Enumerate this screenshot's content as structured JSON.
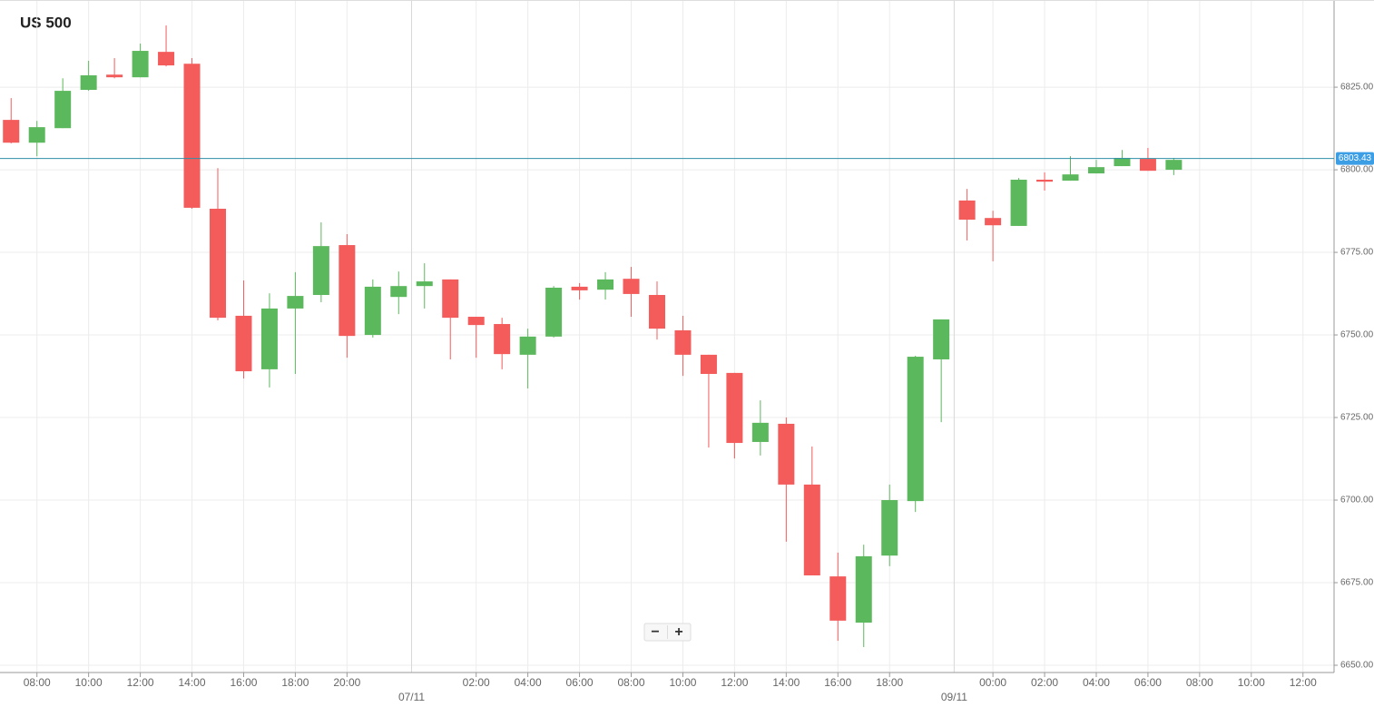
{
  "chart_data": {
    "type": "candlestick",
    "title": "US 500",
    "categories": [
      null,
      "08:00",
      null,
      "10:00",
      null,
      "12:00",
      null,
      "14:00",
      null,
      "16:00",
      null,
      "18:00",
      null,
      "20:00",
      null,
      null,
      null,
      null,
      "02:00",
      null,
      "04:00",
      null,
      "06:00",
      null,
      "08:00",
      null,
      "10:00",
      null,
      "12:00",
      null,
      "14:00",
      null,
      "16:00",
      null,
      "18:00",
      null,
      null,
      null,
      "00:00",
      null,
      "02:00",
      null,
      "04:00",
      null,
      "06:00",
      null,
      "08:00",
      null,
      "10:00",
      null,
      "12:00"
    ],
    "open": [
      6815.1,
      6808.2,
      6812.6,
      6824.2,
      6828.8,
      6828.0,
      6835.7,
      6832.1,
      6788.2,
      6755.8,
      6739.6,
      6758.0,
      6762.1,
      6777.2,
      6750.0,
      6761.5,
      6764.8,
      6766.8,
      6755.5,
      6753.3,
      6744.0,
      6749.5,
      6764.6,
      6763.7,
      6767.0,
      6762.1,
      6751.4,
      6744.0,
      6738.5,
      6717.6,
      6723.1,
      6704.7,
      6676.9,
      6662.9,
      6683.2,
      6699.7,
      6742.6,
      6790.7,
      6785.4,
      6783.0,
      6797.0,
      6796.7,
      6798.9,
      6801.1,
      6803.3,
      6800.0,
      null,
      null,
      null,
      null,
      null
    ],
    "high": [
      6821.7,
      6814.8,
      6827.7,
      6833.0,
      6833.8,
      6838.2,
      6843.7,
      6833.8,
      6800.5,
      6766.5,
      6762.6,
      6769.0,
      6784.1,
      6780.5,
      6766.8,
      6769.2,
      6771.7,
      6766.8,
      6755.5,
      6755.2,
      6751.9,
      6764.8,
      6765.7,
      6769.0,
      6770.6,
      6766.2,
      6755.8,
      6744.0,
      6738.5,
      6730.2,
      6725.0,
      6716.2,
      6684.1,
      6686.5,
      6704.7,
      6743.7,
      6754.7,
      6794.2,
      6787.6,
      6797.5,
      6799.2,
      6804.1,
      6803.0,
      6806.0,
      6806.6,
      6803.6,
      null,
      null,
      null,
      null,
      null
    ],
    "low": [
      6808.0,
      6804.1,
      6812.6,
      6823.9,
      6827.7,
      6828.0,
      6831.3,
      6788.2,
      6754.4,
      6736.8,
      6734.1,
      6738.2,
      6759.9,
      6743.1,
      6749.2,
      6756.3,
      6758.0,
      6742.6,
      6743.1,
      6739.6,
      6733.8,
      6749.2,
      6760.7,
      6760.7,
      6755.5,
      6748.6,
      6737.6,
      6715.9,
      6712.6,
      6713.5,
      6687.4,
      6677.2,
      6657.4,
      6655.5,
      6680.0,
      6696.4,
      6723.6,
      6778.6,
      6772.3,
      6783.0,
      6793.7,
      6796.7,
      6798.9,
      6801.1,
      6799.7,
      6798.4,
      null,
      null,
      null,
      null,
      null
    ],
    "close": [
      6808.2,
      6812.9,
      6823.9,
      6828.6,
      6828.0,
      6836.0,
      6831.6,
      6788.5,
      6755.2,
      6739.0,
      6758.0,
      6761.8,
      6776.9,
      6749.7,
      6764.6,
      6764.8,
      6766.2,
      6755.2,
      6753.0,
      6744.2,
      6749.5,
      6764.3,
      6763.5,
      6766.8,
      6762.4,
      6751.9,
      6744.0,
      6738.2,
      6717.3,
      6723.4,
      6704.7,
      6677.2,
      6663.5,
      6683.0,
      6700.0,
      6743.4,
      6754.7,
      6784.9,
      6783.2,
      6797.0,
      6796.4,
      6798.6,
      6800.8,
      6803.6,
      6799.7,
      6803.0,
      null,
      null,
      null,
      null,
      null
    ],
    "up_color": "#5cb85c",
    "down_color": "#f45b5b",
    "current_price": 6803.43,
    "current_price_color": "#2e8fa8",
    "day_labels": [
      "07/11",
      "09/11"
    ],
    "ylim": [
      6647.8,
      6851.4
    ],
    "yticks": [
      {
        "value": 6650,
        "label": "6650.00"
      },
      {
        "value": 6675,
        "label": "6675.00"
      },
      {
        "value": 6700,
        "label": "6700.00"
      },
      {
        "value": 6725,
        "label": "6725.00"
      },
      {
        "value": 6750,
        "label": "6750.00"
      },
      {
        "value": 6775,
        "label": "6775.00"
      },
      {
        "value": 6800,
        "label": "6800.00"
      },
      {
        "value": 6825,
        "label": "6825.00"
      }
    ],
    "grid": true,
    "zoom_controls": [
      "−",
      "+"
    ]
  }
}
